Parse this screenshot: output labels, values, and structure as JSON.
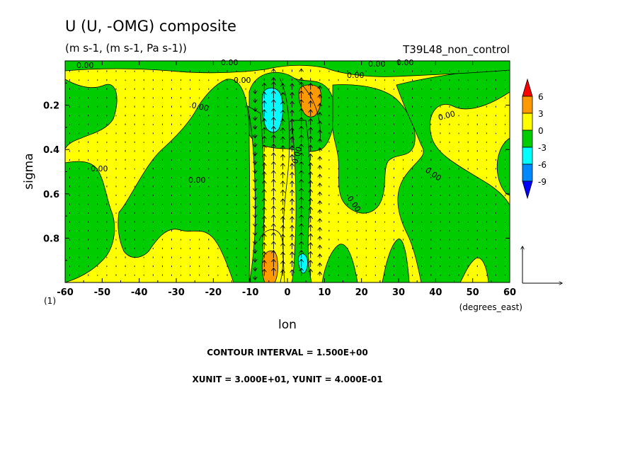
{
  "chart_data": {
    "type": "heatmap",
    "title": "U (U, -OMG) composite",
    "subtitle": "(m s-1, (m s-1, Pa s-1))",
    "experiment": "T39L48_non_control",
    "xlabel": "lon",
    "xunits": "(degrees_east)",
    "ylabel": "sigma",
    "panel_label": "(1)",
    "xlim": [
      -60,
      60
    ],
    "ylim": [
      1.0,
      0.0
    ],
    "x_ticks": [
      -60,
      -50,
      -40,
      -30,
      -20,
      -10,
      0,
      10,
      20,
      30,
      40,
      50,
      60
    ],
    "y_ticks": [
      0.2,
      0.4,
      0.6,
      0.8
    ],
    "colorbar": {
      "levels": [
        "6",
        "3",
        "0",
        "-3",
        "-6",
        "-9"
      ],
      "colors": [
        "#ff0000",
        "#ff9900",
        "#ffff00",
        "#00cc00",
        "#00ffff",
        "#0088ff",
        "#0000ff"
      ]
    },
    "contour_labels": [
      "0.00"
    ],
    "regions": [
      {
        "value_range": "3 to 6",
        "lon": [
          1.5,
          7.5
        ],
        "sigma": [
          0.11,
          0.26
        ]
      },
      {
        "value_range": "3 to 6",
        "lon": [
          -6.5,
          -3
        ],
        "sigma": [
          0.86,
          0.99
        ]
      },
      {
        "value_range": "-6 to -3",
        "lon": [
          -6.5,
          -2
        ],
        "sigma": [
          0.12,
          0.32
        ]
      },
      {
        "value_range": "-6 to -3",
        "lon": [
          3,
          5.5
        ],
        "sigma": [
          0.89,
          0.97
        ]
      }
    ],
    "notes": {
      "contour_interval": "CONTOUR INTERVAL = 1.500E+00",
      "vector_units": "XUNIT = 3.000E+01, YUNIT = 4.000E-01"
    }
  }
}
